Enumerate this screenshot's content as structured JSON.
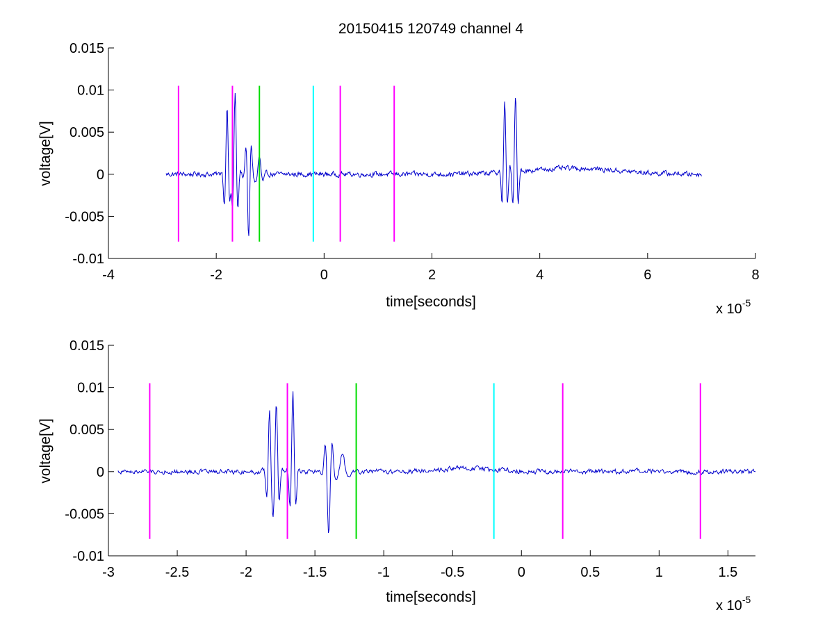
{
  "colors": {
    "signal": "#0000cc",
    "marker_magenta": "#ff00ff",
    "marker_green": "#00dd00",
    "marker_cyan": "#00ffff",
    "axes": "#000000",
    "background": "#ffffff"
  },
  "chart_data": [
    {
      "type": "line",
      "title": "20150415 120749 channel 4",
      "xlabel": "time[seconds]",
      "ylabel": "voltage[V]",
      "x_exponent": "x 10",
      "x_exponent_power": "-5",
      "xlim": [
        -4,
        8
      ],
      "ylim": [
        -0.01,
        0.015
      ],
      "xticks": [
        -4,
        -2,
        0,
        2,
        4,
        6,
        8
      ],
      "xtick_labels": [
        "-4",
        "-2",
        "0",
        "2",
        "4",
        "6",
        "8"
      ],
      "yticks": [
        -0.01,
        -0.005,
        0,
        0.005,
        0.01,
        0.015
      ],
      "ytick_labels": [
        "-0.01",
        "-0.005",
        "0",
        "0.005",
        "0.01",
        "0.015"
      ],
      "grid": false,
      "signal": {
        "x_range": [
          -2.93,
          7.0
        ],
        "baseline_noise": 0.0003,
        "bursts": [
          {
            "x": -1.8,
            "amplitude": 0.008,
            "width": 0.06
          },
          {
            "x": -1.65,
            "amplitude": 0.0095,
            "width": 0.06
          },
          {
            "x": -1.4,
            "amplitude": -0.0075,
            "width": 0.06
          },
          {
            "x": -1.2,
            "amplitude": 0.002,
            "width": 0.08
          },
          {
            "x": 3.35,
            "amplitude": 0.0082,
            "width": 0.06
          },
          {
            "x": 3.55,
            "amplitude": 0.009,
            "width": 0.06
          }
        ],
        "drift": [
          {
            "x": 4.6,
            "level": 0.0007,
            "width": 1.2
          }
        ]
      },
      "markers": [
        {
          "x": -2.7,
          "ymin": -0.008,
          "ymax": 0.0105,
          "color": "#ff00ff"
        },
        {
          "x": -1.7,
          "ymin": -0.008,
          "ymax": 0.0105,
          "color": "#ff00ff"
        },
        {
          "x": -1.2,
          "ymin": -0.008,
          "ymax": 0.0105,
          "color": "#00dd00"
        },
        {
          "x": -0.2,
          "ymin": -0.008,
          "ymax": 0.0105,
          "color": "#00ffff"
        },
        {
          "x": 0.3,
          "ymin": -0.008,
          "ymax": 0.0105,
          "color": "#ff00ff"
        },
        {
          "x": 1.3,
          "ymin": -0.008,
          "ymax": 0.0105,
          "color": "#ff00ff"
        }
      ]
    },
    {
      "type": "line",
      "title": "",
      "xlabel": "time[seconds]",
      "ylabel": "voltage[V]",
      "x_exponent": "x 10",
      "x_exponent_power": "-5",
      "xlim": [
        -3,
        1.7
      ],
      "ylim": [
        -0.01,
        0.015
      ],
      "xticks": [
        -3,
        -2.5,
        -2,
        -1.5,
        -1,
        -0.5,
        0,
        0.5,
        1,
        1.5
      ],
      "xtick_labels": [
        "-3",
        "-2.5",
        "-2",
        "-1.5",
        "-1",
        "-0.5",
        "0",
        "0.5",
        "1",
        "1.5"
      ],
      "yticks": [
        -0.01,
        -0.005,
        0,
        0.005,
        0.01,
        0.015
      ],
      "ytick_labels": [
        "-0.01",
        "-0.005",
        "0",
        "0.005",
        "0.01",
        "0.015"
      ],
      "grid": false,
      "signal": {
        "x_range": [
          -2.93,
          1.7
        ],
        "baseline_noise": 0.0003,
        "bursts": [
          {
            "x": -1.83,
            "amplitude": 0.0072,
            "width": 0.025
          },
          {
            "x": -1.78,
            "amplitude": 0.008,
            "width": 0.025
          },
          {
            "x": -1.66,
            "amplitude": 0.0095,
            "width": 0.025
          },
          {
            "x": -1.4,
            "amplitude": -0.0075,
            "width": 0.03
          },
          {
            "x": -1.3,
            "amplitude": 0.002,
            "width": 0.05
          }
        ],
        "drift": [
          {
            "x": -0.4,
            "level": 0.0004,
            "width": 0.3
          }
        ]
      },
      "markers": [
        {
          "x": -2.7,
          "ymin": -0.008,
          "ymax": 0.0105,
          "color": "#ff00ff"
        },
        {
          "x": -1.7,
          "ymin": -0.008,
          "ymax": 0.0105,
          "color": "#ff00ff"
        },
        {
          "x": -1.2,
          "ymin": -0.008,
          "ymax": 0.0105,
          "color": "#00dd00"
        },
        {
          "x": -0.2,
          "ymin": -0.008,
          "ymax": 0.0105,
          "color": "#00ffff"
        },
        {
          "x": 0.3,
          "ymin": -0.008,
          "ymax": 0.0105,
          "color": "#ff00ff"
        },
        {
          "x": 1.3,
          "ymin": -0.008,
          "ymax": 0.0105,
          "color": "#ff00ff"
        }
      ]
    }
  ]
}
